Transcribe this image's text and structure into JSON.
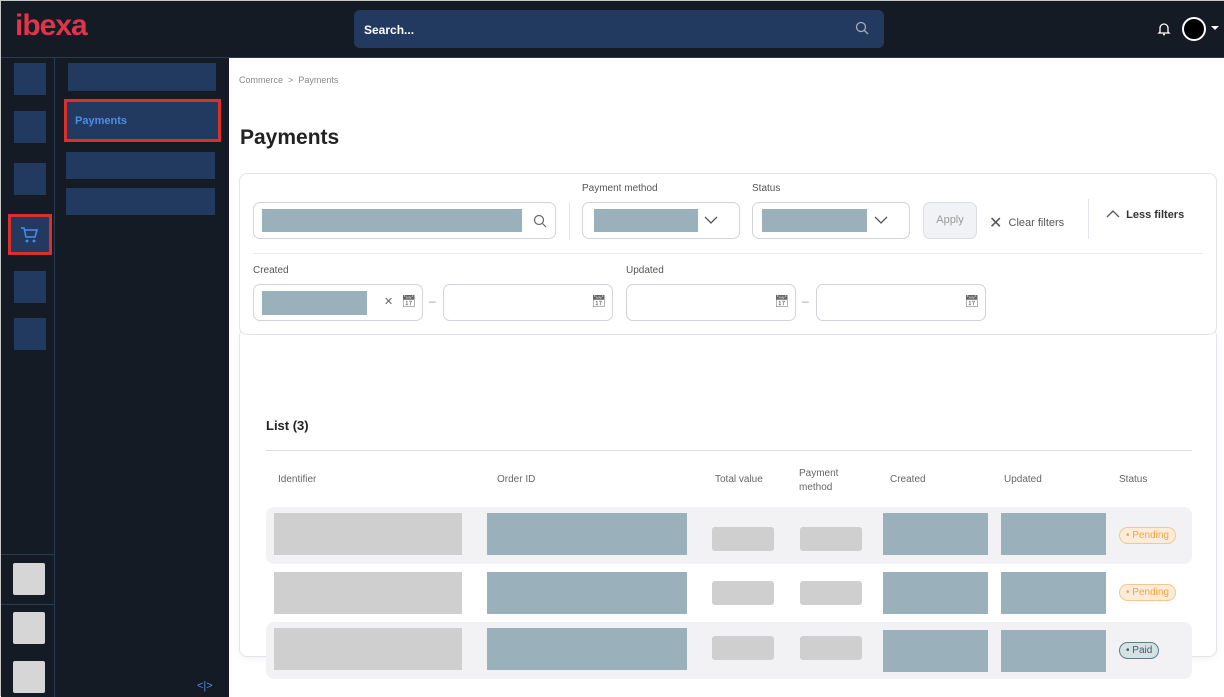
{
  "header": {
    "logo": "ibexa",
    "search_placeholder": "Search...",
    "icons": [
      "bell-icon",
      "avatar",
      "caret-down-icon"
    ]
  },
  "sidebar": {
    "active_icon": "cart-icon",
    "active_item": "Payments"
  },
  "breadcrumb": [
    "Commerce",
    ">",
    "Payments"
  ],
  "page_title": "Payments",
  "filters": {
    "payment_method_label": "Payment method",
    "status_label": "Status",
    "apply": "Apply",
    "clear": "Clear filters",
    "less": "Less filters",
    "created_label": "Created",
    "updated_label": "Updated"
  },
  "list": {
    "title": "List (3)",
    "columns": [
      "Identifier",
      "Order ID",
      "Total value",
      "Payment method",
      "Created",
      "Updated",
      "Status"
    ],
    "rows": [
      {
        "status": "Pending"
      },
      {
        "status": "Pending"
      },
      {
        "status": "Paid"
      }
    ]
  },
  "colors": {
    "accent": "#e0344a",
    "nav": "#223a60",
    "pending": "#f0a54a",
    "paid": "#5a7f8a"
  }
}
